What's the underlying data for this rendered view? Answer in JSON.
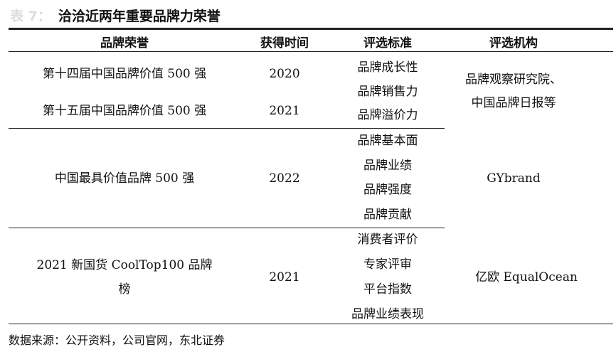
{
  "title": {
    "prefix": "表 7：",
    "text": "洽洽近两年重要品牌力荣誉"
  },
  "table": {
    "headers": [
      "品牌荣誉",
      "获得时间",
      "评选标准",
      "评选机构"
    ],
    "groups": [
      {
        "honors": [
          {
            "name": "第十四届中国品牌价值 500 强",
            "year": "2020"
          },
          {
            "name": "第十五届中国品牌价值 500 强",
            "year": "2021"
          }
        ],
        "criteria": [
          "品牌成长性",
          "品牌销售力",
          "品牌溢价力"
        ],
        "org": [
          "品牌观察研究院、",
          "中国品牌日报等"
        ]
      },
      {
        "honors": [
          {
            "name": "中国最具价值品牌 500 强",
            "year": "2022"
          }
        ],
        "criteria": [
          "品牌基本面",
          "品牌业绩",
          "品牌强度",
          "品牌贡献"
        ],
        "org": [
          "GYbrand"
        ]
      },
      {
        "honors": [
          {
            "name": "2021 新国货 CoolTop100 品牌",
            "name2": "榜",
            "year": "2021"
          }
        ],
        "criteria": [
          "消费者评价",
          "专家评审",
          "平台指数",
          "品牌业绩表现"
        ],
        "org": [
          "亿欧 EqualOcean"
        ]
      }
    ]
  },
  "source": "数据来源：公开资料，公司官网，东北证券"
}
